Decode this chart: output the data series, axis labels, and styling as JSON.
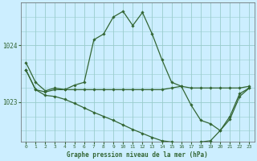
{
  "title": "Graphe pression niveau de la mer (hPa)",
  "background_color": "#cceeff",
  "plot_bg_color": "#cceeff",
  "grid_color": "#99cccc",
  "line_color": "#336633",
  "marker_color": "#336633",
  "ylim": [
    1022.3,
    1024.75
  ],
  "yticks": [
    1023,
    1024
  ],
  "xlim": [
    -0.5,
    23.5
  ],
  "xticks": [
    0,
    1,
    2,
    3,
    4,
    5,
    6,
    7,
    8,
    9,
    10,
    11,
    12,
    13,
    14,
    15,
    16,
    17,
    18,
    19,
    20,
    21,
    22,
    23
  ],
  "series": [
    [
      1023.7,
      1023.35,
      1023.2,
      1023.25,
      1023.22,
      1023.3,
      1023.35,
      1024.1,
      1024.2,
      1024.5,
      1024.6,
      1024.35,
      1024.58,
      1024.2,
      1023.75,
      1023.35,
      1023.28,
      1022.95,
      1022.68,
      1022.62,
      1022.5,
      1022.75,
      1023.15,
      1023.25
    ],
    [
      1023.57,
      1023.22,
      1023.18,
      1023.22,
      1023.22,
      1023.22,
      1023.22,
      1023.22,
      1023.22,
      1023.22,
      1023.22,
      1023.22,
      1023.22,
      1023.22,
      1023.22,
      1023.25,
      1023.28,
      1023.25,
      1023.25,
      1023.25,
      1023.25,
      1023.25,
      1023.25,
      1023.28
    ],
    [
      1023.57,
      1023.22,
      1023.12,
      1023.1,
      1023.05,
      1022.98,
      1022.9,
      1022.82,
      1022.75,
      1022.68,
      1022.6,
      1022.52,
      1022.45,
      1022.38,
      1022.32,
      1022.3,
      1022.28,
      1022.25,
      1022.3,
      1022.32,
      1022.5,
      1022.7,
      1023.1,
      1023.25
    ]
  ]
}
